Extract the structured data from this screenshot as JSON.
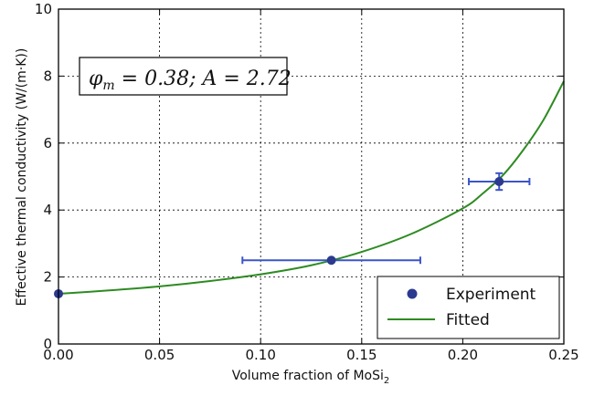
{
  "chart_data": {
    "type": "scatter",
    "xlabel_main": "Volume fraction of MoSi",
    "xlabel_sub": "2",
    "ylabel": "Effective thermal conductivity (W/(m·K))",
    "xlim": [
      0,
      0.25
    ],
    "ylim": [
      0,
      10
    ],
    "xticks": [
      "0.00",
      "0.05",
      "0.10",
      "0.15",
      "0.20",
      "0.25"
    ],
    "yticks": [
      "0",
      "2",
      "4",
      "6",
      "8",
      "10"
    ],
    "grid": true,
    "legend_position": "lower-right",
    "annotation_phi": "φ",
    "annotation_phi_sub": "m",
    "annotation_rest": " = 0.38; A = 2.72",
    "series": [
      {
        "name": "Experiment",
        "kind": "points",
        "color": "#2b3a8f",
        "points": [
          {
            "x": 0.0,
            "y": 1.5,
            "xerr": 0,
            "yerr": 0
          },
          {
            "x": 0.135,
            "y": 2.5,
            "xerr": 0.044,
            "yerr": 0
          },
          {
            "x": 0.218,
            "y": 4.85,
            "xerr": 0.015,
            "yerr": 0.25
          }
        ]
      },
      {
        "name": "Fitted",
        "kind": "line",
        "color": "#2e8b22",
        "points": [
          {
            "x": 0.0,
            "y": 1.5
          },
          {
            "x": 0.025,
            "y": 1.6
          },
          {
            "x": 0.05,
            "y": 1.72
          },
          {
            "x": 0.075,
            "y": 1.88
          },
          {
            "x": 0.1,
            "y": 2.08
          },
          {
            "x": 0.125,
            "y": 2.35
          },
          {
            "x": 0.15,
            "y": 2.75
          },
          {
            "x": 0.175,
            "y": 3.3
          },
          {
            "x": 0.2,
            "y": 4.05
          },
          {
            "x": 0.21,
            "y": 4.5
          },
          {
            "x": 0.22,
            "y": 5.05
          },
          {
            "x": 0.23,
            "y": 5.8
          },
          {
            "x": 0.24,
            "y": 6.7
          },
          {
            "x": 0.25,
            "y": 7.85
          }
        ]
      }
    ]
  }
}
